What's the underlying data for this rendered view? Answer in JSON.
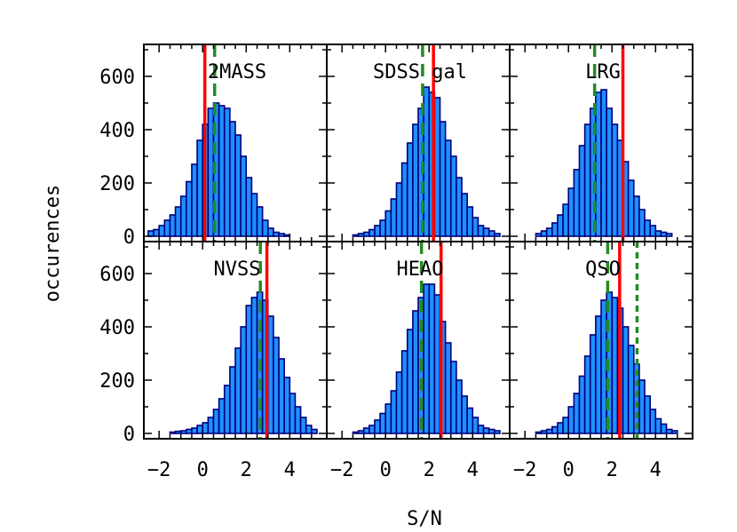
{
  "chart_data": {
    "type": "bar",
    "xlabel": "S/N",
    "ylabel": "occurences",
    "xlim": [
      -2.7,
      5.7
    ],
    "ylim": [
      -20,
      720
    ],
    "x_ticks": [
      -2,
      0,
      2,
      4
    ],
    "x_tick_labels": [
      "−2",
      "0",
      "2",
      "4"
    ],
    "y_ticks": [
      0,
      200,
      400,
      600
    ],
    "y_tick_labels": [
      "0",
      "200",
      "400",
      "600"
    ],
    "bin_width": 0.25,
    "colors": {
      "bar_fill": "#1e8fff",
      "bar_edge": "#00007a",
      "red_line": "#ff0000",
      "green_line": "#228b22"
    },
    "panels": [
      {
        "title": "2MASS",
        "bins_start": -2.5,
        "counts": [
          20,
          25,
          40,
          60,
          80,
          110,
          150,
          205,
          270,
          360,
          420,
          480,
          500,
          490,
          480,
          430,
          380,
          300,
          220,
          160,
          110,
          60,
          30,
          15,
          10,
          5
        ],
        "red_line": 0.1,
        "green_dashed": 0.55,
        "green_dotted": null
      },
      {
        "title": "SDSS gal",
        "bins_start": -1.5,
        "counts": [
          5,
          10,
          15,
          25,
          40,
          60,
          95,
          140,
          200,
          275,
          350,
          420,
          480,
          560,
          540,
          520,
          430,
          360,
          300,
          220,
          160,
          110,
          70,
          40,
          30,
          20,
          10
        ],
        "red_line": 2.2,
        "green_dashed": 1.7,
        "green_dotted": null
      },
      {
        "title": "LRG",
        "bins_start": -1.5,
        "counts": [
          10,
          20,
          30,
          50,
          80,
          120,
          180,
          250,
          340,
          420,
          480,
          540,
          550,
          480,
          420,
          360,
          280,
          210,
          150,
          100,
          60,
          40,
          20,
          15,
          10
        ],
        "red_line": 2.5,
        "green_dashed": 1.2,
        "green_dotted": null
      },
      {
        "title": "NVSS",
        "bins_start": -1.5,
        "counts": [
          5,
          8,
          10,
          15,
          20,
          30,
          40,
          60,
          90,
          130,
          180,
          250,
          320,
          400,
          480,
          510,
          530,
          500,
          440,
          360,
          280,
          210,
          150,
          100,
          60,
          30,
          15
        ],
        "red_line": 2.95,
        "green_dashed": 2.65,
        "green_dotted": null
      },
      {
        "title": "HEAO",
        "bins_start": -1.5,
        "counts": [
          5,
          10,
          20,
          30,
          50,
          75,
          110,
          160,
          230,
          310,
          390,
          460,
          510,
          560,
          560,
          520,
          420,
          340,
          270,
          200,
          140,
          95,
          60,
          30,
          20,
          15,
          10
        ],
        "red_line": 2.55,
        "green_dashed": 1.65,
        "green_dotted": null
      },
      {
        "title": "QSO",
        "bins_start": -1.5,
        "counts": [
          5,
          10,
          15,
          25,
          40,
          60,
          100,
          150,
          215,
          290,
          370,
          440,
          500,
          530,
          510,
          470,
          400,
          330,
          260,
          200,
          140,
          90,
          55,
          35,
          15,
          10
        ],
        "red_line": 2.35,
        "green_dashed": 1.8,
        "green_dotted": 3.15
      }
    ]
  }
}
